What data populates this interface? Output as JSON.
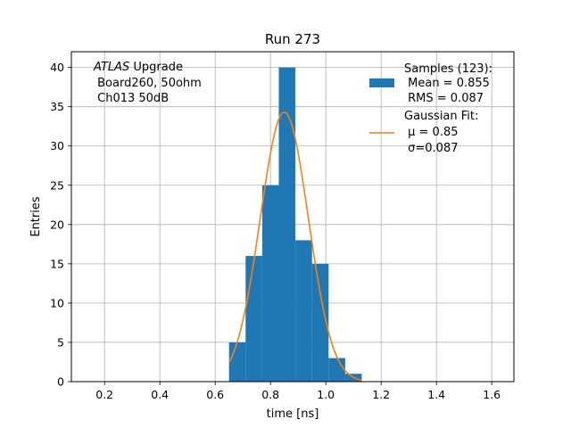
{
  "chart_data": {
    "type": "bar",
    "title": "Run 273",
    "xlabel": "time [ns]",
    "ylabel": "Entries",
    "xlim": [
      0.08,
      1.68
    ],
    "ylim": [
      0,
      42
    ],
    "grid": true,
    "xticks": [
      "0.2",
      "0.4",
      "0.6",
      "0.8",
      "1.0",
      "1.2",
      "1.4",
      "1.6"
    ],
    "xtick_values": [
      0.2,
      0.4,
      0.6,
      0.8,
      1.0,
      1.2,
      1.4,
      1.6
    ],
    "yticks": [
      "0",
      "5",
      "10",
      "15",
      "20",
      "25",
      "30",
      "35",
      "40"
    ],
    "ytick_values": [
      0,
      5,
      10,
      15,
      20,
      25,
      30,
      35,
      40
    ],
    "histogram": {
      "name": "Samples (123):",
      "color": "#1f77b4",
      "bins": [
        {
          "x0": 0.65,
          "x1": 0.71,
          "count": 5
        },
        {
          "x0": 0.71,
          "x1": 0.77,
          "count": 16
        },
        {
          "x0": 0.77,
          "x1": 0.83,
          "count": 25
        },
        {
          "x0": 0.83,
          "x1": 0.89,
          "count": 40
        },
        {
          "x0": 0.89,
          "x1": 0.95,
          "count": 18
        },
        {
          "x0": 0.95,
          "x1": 1.01,
          "count": 15
        },
        {
          "x0": 1.01,
          "x1": 1.07,
          "count": 3
        },
        {
          "x0": 1.07,
          "x1": 1.13,
          "count": 1
        }
      ]
    },
    "fit": {
      "name": "Gaussian Fit:",
      "color": "#ff7f0e",
      "mu": 0.85,
      "sigma": 0.087,
      "amplitude": 34.3,
      "x_range": [
        0.65,
        1.13
      ]
    },
    "legend": {
      "placement": "top-right",
      "samples_label": "Samples (123):",
      "mean_label": " Mean = 0.855",
      "rms_label": " RMS = 0.087",
      "fit_label": "Gaussian Fit:",
      "mu_label": " μ = 0.85",
      "sigma_label": " σ=0.087"
    },
    "annotation": {
      "italic_part": "ATLAS",
      "line1_rest": " Upgrade",
      "line2": " Board260, 50ohm",
      "line3": " Ch013 50dB"
    }
  }
}
